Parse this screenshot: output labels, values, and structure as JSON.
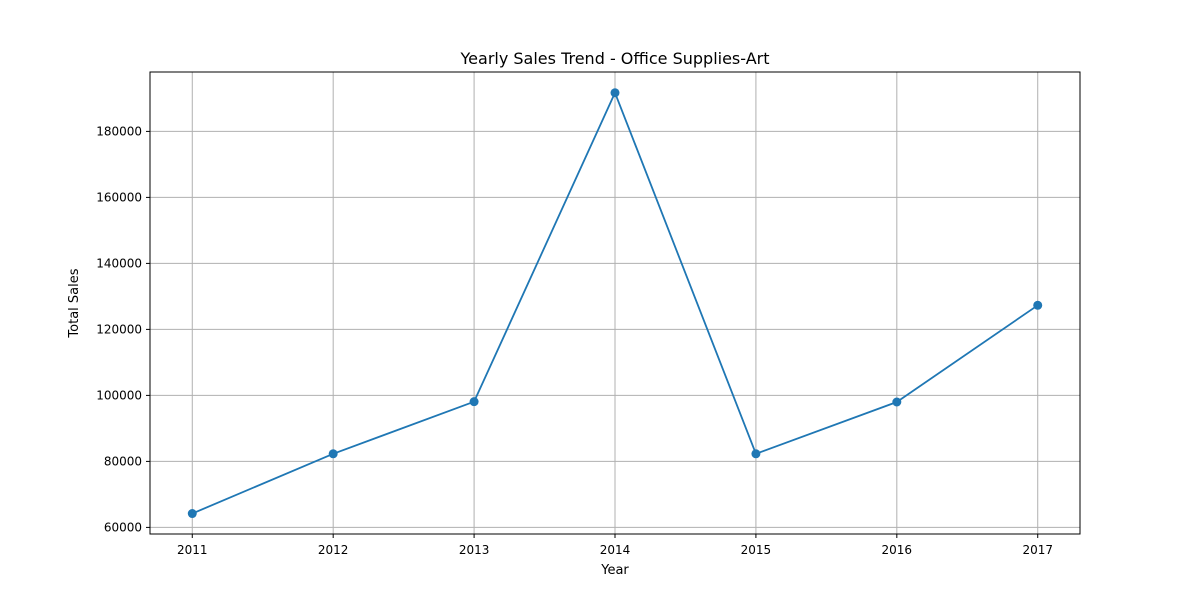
{
  "chart_data": {
    "type": "line",
    "title": "Yearly Sales Trend - Office Supplies-Art",
    "xlabel": "Year",
    "ylabel": "Total Sales",
    "x": [
      2011,
      2012,
      2013,
      2014,
      2015,
      2016,
      2017
    ],
    "x_tick_labels": [
      "2011",
      "2012",
      "2013",
      "2014",
      "2015",
      "2016",
      "2017"
    ],
    "xlim": [
      2010.7,
      2017.3
    ],
    "ylim": [
      58000,
      198000
    ],
    "y_ticks": [
      60000,
      80000,
      100000,
      120000,
      140000,
      160000,
      180000
    ],
    "y_tick_labels": [
      "60000",
      "80000",
      "100000",
      "120000",
      "140000",
      "160000",
      "180000"
    ],
    "series": [
      {
        "values": [
          64200,
          82300,
          98100,
          191700,
          82300,
          98000,
          127300
        ],
        "color": "#1f77b4",
        "marker": "circle"
      }
    ],
    "grid": true,
    "legend": false
  }
}
